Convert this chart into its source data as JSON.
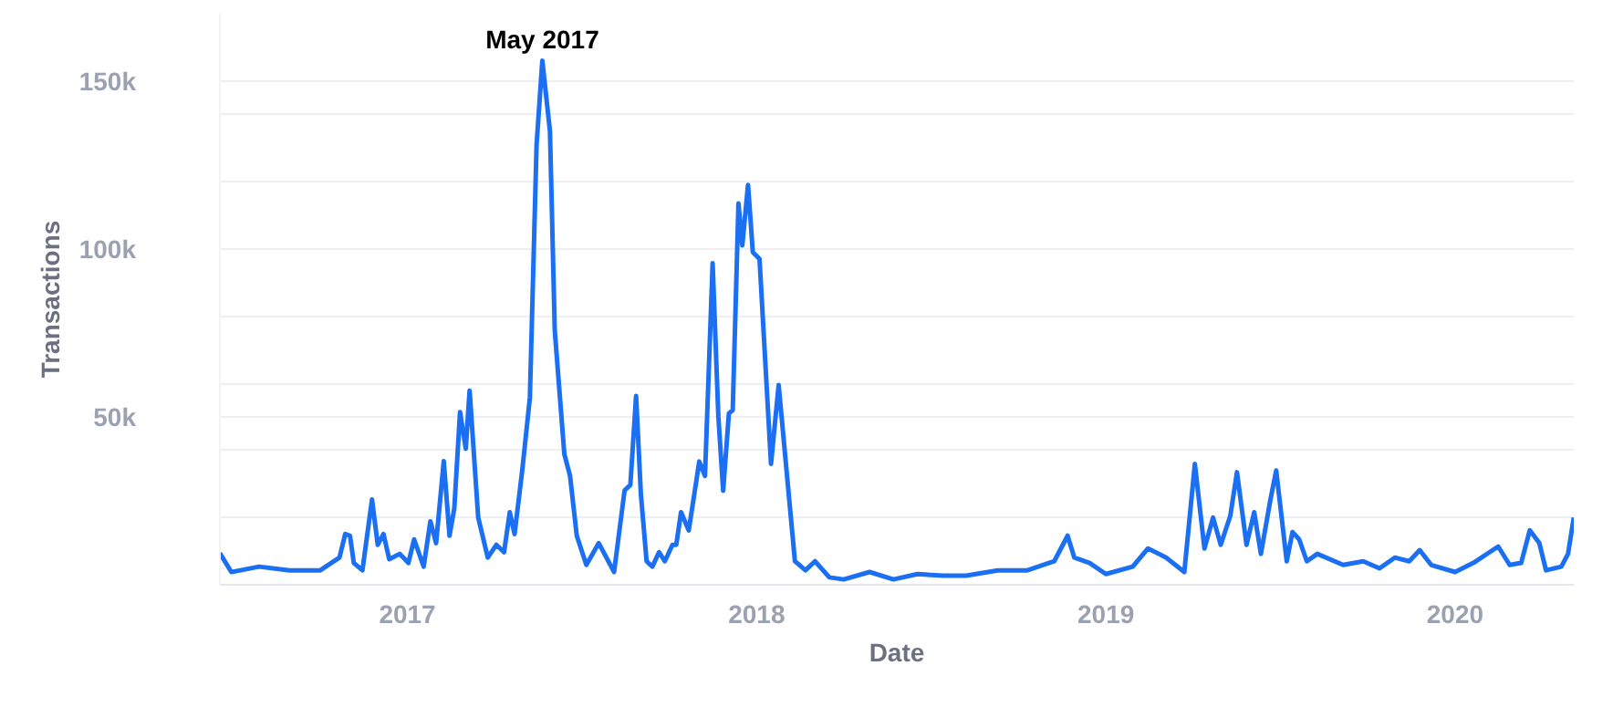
{
  "chart_data": {
    "type": "line",
    "xlabel": "Date",
    "ylabel": "Transactions",
    "annotations": [
      {
        "text": "May 2017",
        "x": "2017-05-22",
        "y": 156000
      }
    ],
    "x": [
      "2016-06-19",
      "2016-07-01",
      "2016-07-30",
      "2016-08-31",
      "2016-10-02",
      "2016-10-22",
      "2016-10-28",
      "2016-11-02",
      "2016-11-06",
      "2016-11-15",
      "2016-11-25",
      "2016-12-01",
      "2016-12-07",
      "2016-12-13",
      "2016-12-24",
      "2017-01-02",
      "2017-01-08",
      "2017-01-18",
      "2017-01-25",
      "2017-01-31",
      "2017-02-08",
      "2017-02-14",
      "2017-02-19",
      "2017-02-25",
      "2017-03-03",
      "2017-03-07",
      "2017-03-16",
      "2017-03-26",
      "2017-04-04",
      "2017-04-12",
      "2017-04-18",
      "2017-04-23",
      "2017-05-01",
      "2017-05-09",
      "2017-05-16",
      "2017-05-22",
      "2017-05-30",
      "2017-06-04",
      "2017-06-14",
      "2017-06-20",
      "2017-06-27",
      "2017-07-07",
      "2017-07-20",
      "2017-08-05",
      "2017-08-16",
      "2017-08-22",
      "2017-08-28",
      "2017-09-02",
      "2017-09-08",
      "2017-09-14",
      "2017-09-21",
      "2017-09-27",
      "2017-10-05",
      "2017-10-09",
      "2017-10-14",
      "2017-10-22",
      "2017-10-30",
      "2017-11-02",
      "2017-11-08",
      "2017-11-16",
      "2017-11-22",
      "2017-11-27",
      "2017-12-03",
      "2017-12-07",
      "2017-12-13",
      "2017-12-17",
      "2017-12-23",
      "2017-12-28",
      "2018-01-04",
      "2018-01-16",
      "2018-01-24",
      "2018-02-10",
      "2018-02-21",
      "2018-03-03",
      "2018-03-18",
      "2018-04-02",
      "2018-04-29",
      "2018-05-24",
      "2018-06-18",
      "2018-07-15",
      "2018-08-08",
      "2018-09-10",
      "2018-10-11",
      "2018-11-08",
      "2018-11-22",
      "2018-11-29",
      "2018-12-15",
      "2019-01-01",
      "2019-01-29",
      "2019-02-14",
      "2019-03-05",
      "2019-03-24",
      "2019-04-04",
      "2019-04-14",
      "2019-04-23",
      "2019-05-01",
      "2019-05-11",
      "2019-05-18",
      "2019-05-28",
      "2019-06-05",
      "2019-06-12",
      "2019-06-22",
      "2019-06-28",
      "2019-07-09",
      "2019-07-15",
      "2019-07-22",
      "2019-07-30",
      "2019-08-10",
      "2019-09-06",
      "2019-09-27",
      "2019-10-14",
      "2019-10-30",
      "2019-11-14",
      "2019-11-25",
      "2019-12-07",
      "2020-01-01",
      "2020-01-20",
      "2020-02-15",
      "2020-02-27",
      "2020-03-10",
      "2020-03-19",
      "2020-03-29",
      "2020-04-05",
      "2020-04-21",
      "2020-04-28",
      "2020-05-04"
    ],
    "series": [
      {
        "color": "#1a6ff2",
        "values": [
          9400,
          3800,
          5400,
          4300,
          4300,
          8100,
          15100,
          14600,
          6500,
          4300,
          25400,
          11900,
          15100,
          7600,
          9200,
          6500,
          13500,
          5400,
          18900,
          12400,
          36800,
          14600,
          22700,
          51400,
          40500,
          57800,
          20000,
          8100,
          11900,
          9700,
          21600,
          15100,
          34000,
          55700,
          131000,
          156000,
          135000,
          75700,
          38900,
          32400,
          14600,
          5900,
          12400,
          3800,
          28100,
          29700,
          56200,
          27000,
          7000,
          5400,
          9700,
          7000,
          11900,
          11900,
          21600,
          16200,
          31000,
          36700,
          32400,
          95700,
          50000,
          28000,
          51000,
          52000,
          113500,
          101000,
          119000,
          99000,
          97000,
          36000,
          59500,
          7000,
          4300,
          7000,
          2200,
          1600,
          3800,
          1600,
          3200,
          2700,
          2700,
          4300,
          4300,
          7000,
          14600,
          8100,
          6500,
          3200,
          5400,
          10800,
          8100,
          3800,
          36000,
          10800,
          20000,
          11900,
          20500,
          33500,
          11900,
          21600,
          9200,
          25400,
          34000,
          7000,
          15700,
          13500,
          7000,
          9200,
          5900,
          7000,
          4900,
          8100,
          7000,
          10300,
          5900,
          3800,
          6500,
          11400,
          5900,
          6500,
          16200,
          12400,
          4300,
          5400,
          9200,
          20000
        ]
      }
    ],
    "xlim": [
      "2016-06-19",
      "2020-05-04"
    ],
    "xticks": [
      {
        "value": "2017-01-01",
        "label": "2017"
      },
      {
        "value": "2018-01-01",
        "label": "2018"
      },
      {
        "value": "2019-01-01",
        "label": "2019"
      },
      {
        "value": "2020-01-01",
        "label": "2020"
      }
    ],
    "ylim": [
      0,
      170000
    ],
    "yticks": [
      {
        "value": 0,
        "label": null
      },
      {
        "value": 20000,
        "label": null
      },
      {
        "value": 40000,
        "label": null
      },
      {
        "value": 50000,
        "label": "50k"
      },
      {
        "value": 60000,
        "label": null
      },
      {
        "value": 80000,
        "label": null
      },
      {
        "value": 100000,
        "label": "100k"
      },
      {
        "value": 120000,
        "label": null
      },
      {
        "value": 140000,
        "label": null
      },
      {
        "value": 150000,
        "label": "150k"
      }
    ],
    "grid": "y"
  }
}
